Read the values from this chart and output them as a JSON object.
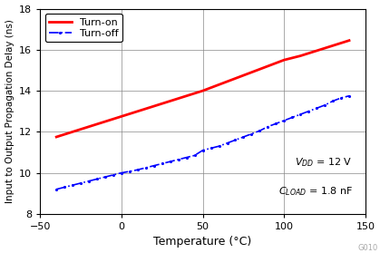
{
  "title": "",
  "xlabel": "Temperature (°C)",
  "ylabel": "Input to Output Propagation Delay (ns)",
  "xlim": [
    -50,
    150
  ],
  "ylim": [
    8,
    18
  ],
  "xticks": [
    -50,
    0,
    50,
    100,
    150
  ],
  "yticks": [
    8,
    10,
    12,
    14,
    16,
    18
  ],
  "turn_on": {
    "x": [
      -40,
      -30,
      -20,
      -10,
      0,
      10,
      20,
      30,
      40,
      50,
      60,
      70,
      80,
      90,
      100,
      110,
      120,
      130,
      140
    ],
    "y": [
      11.75,
      12.0,
      12.25,
      12.5,
      12.75,
      13.0,
      13.25,
      13.5,
      13.75,
      14.0,
      14.3,
      14.6,
      14.9,
      15.2,
      15.5,
      15.7,
      15.95,
      16.2,
      16.45
    ],
    "color": "#FF0000",
    "linestyle": "-",
    "linewidth": 2.0,
    "label": "Turn-on"
  },
  "turn_off": {
    "x": [
      -40,
      -35,
      -30,
      -25,
      -20,
      -15,
      -10,
      -5,
      0,
      5,
      10,
      15,
      20,
      25,
      30,
      35,
      40,
      45,
      50,
      55,
      60,
      65,
      70,
      75,
      80,
      85,
      90,
      95,
      100,
      105,
      110,
      115,
      120,
      125,
      130,
      135,
      140
    ],
    "y": [
      9.2,
      9.3,
      9.4,
      9.5,
      9.6,
      9.7,
      9.8,
      9.9,
      10.0,
      10.07,
      10.15,
      10.25,
      10.35,
      10.45,
      10.55,
      10.65,
      10.75,
      10.85,
      11.1,
      11.2,
      11.3,
      11.45,
      11.6,
      11.75,
      11.9,
      12.05,
      12.25,
      12.4,
      12.55,
      12.7,
      12.85,
      13.0,
      13.15,
      13.3,
      13.5,
      13.65,
      13.75
    ],
    "color": "#0000FF",
    "linestyle": "-.",
    "linewidth": 1.2,
    "label": "Turn-off",
    "marker": ".",
    "markersize": 2.5
  },
  "grid_color": "#888888",
  "fig_bg_color": "#ffffff",
  "axes_bg_color": "#ffffff",
  "watermark": "G010",
  "watermark_color": "#aaaaaa",
  "annot_fontsize": 8,
  "legend_fontsize": 8,
  "tick_fontsize": 8,
  "xlabel_fontsize": 9,
  "ylabel_fontsize": 7.5
}
